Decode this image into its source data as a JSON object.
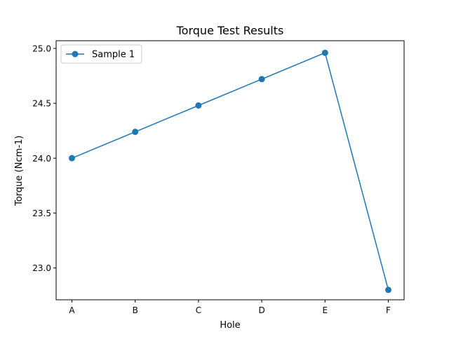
{
  "chart_data": {
    "type": "line",
    "title": "Torque Test Results",
    "xlabel": "Hole",
    "ylabel": "Torque (Ncm-1)",
    "categories": [
      "A",
      "B",
      "C",
      "D",
      "E",
      "F"
    ],
    "series": [
      {
        "name": "Sample 1",
        "color": "#1f77b4",
        "values": [
          24.0,
          24.24,
          24.48,
          24.72,
          24.96,
          22.8
        ]
      }
    ],
    "ylim": [
      22.71,
      25.07
    ],
    "yticks": [
      "23.0",
      "23.5",
      "24.0",
      "24.5",
      "25.0"
    ],
    "grid": false,
    "legend_position": "top-left"
  }
}
